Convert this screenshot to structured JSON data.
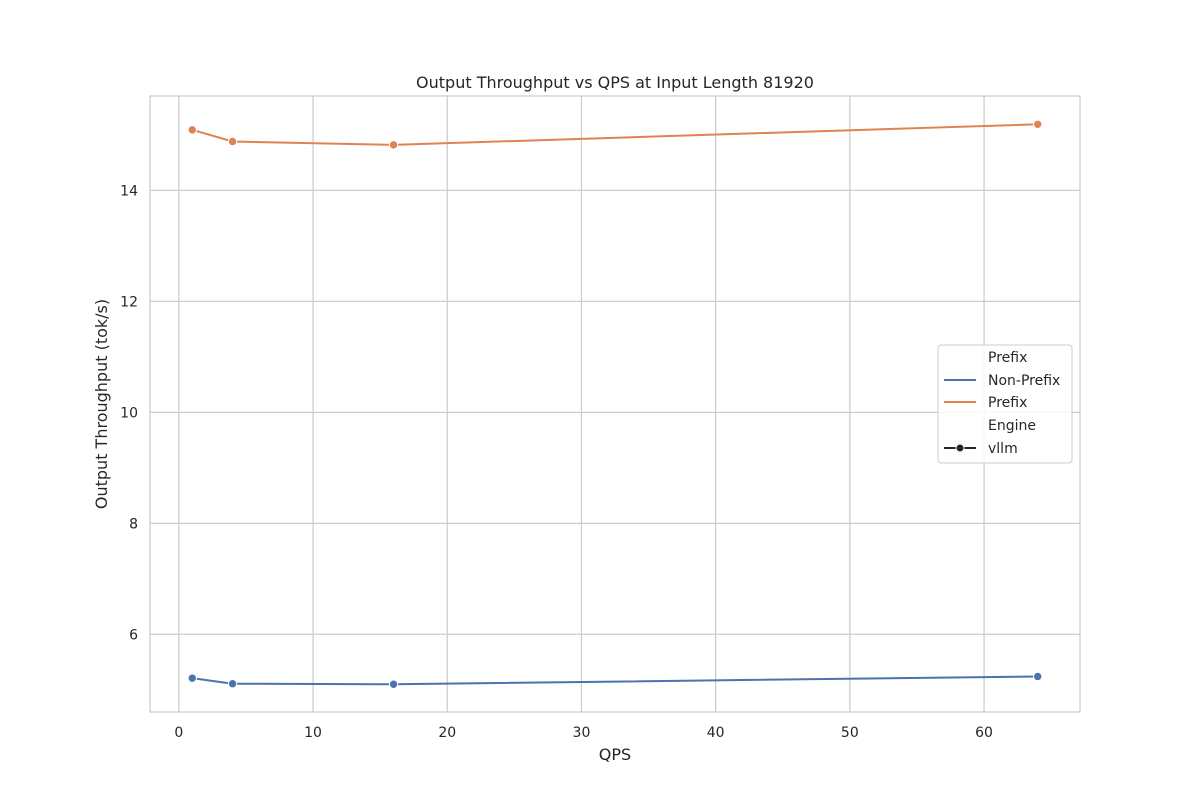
{
  "chart_data": {
    "type": "line",
    "title": "Output Throughput vs QPS at Input Length 81920",
    "xlabel": "QPS",
    "ylabel": "Output Throughput (tok/s)",
    "xlim": [
      -2.15,
      67.15
    ],
    "ylim": [
      4.6,
      15.7
    ],
    "xticks": [
      0,
      10,
      20,
      30,
      40,
      50,
      60
    ],
    "yticks": [
      6,
      8,
      10,
      12,
      14
    ],
    "grid": true,
    "legend_placement": "center-right",
    "legend": {
      "hue_title": "Prefix",
      "style_title": "Engine",
      "style_entries": [
        {
          "label": "vllm",
          "marker": "circle",
          "color": "#262626"
        }
      ]
    },
    "series": [
      {
        "name": "Non-Prefix",
        "color": "#4c72b0",
        "x": [
          1,
          4,
          16,
          64
        ],
        "y": [
          5.21,
          5.11,
          5.1,
          5.24
        ]
      },
      {
        "name": "Prefix",
        "color": "#dd8452",
        "x": [
          1,
          4,
          16,
          64
        ],
        "y": [
          15.09,
          14.88,
          14.82,
          15.19
        ]
      }
    ]
  }
}
